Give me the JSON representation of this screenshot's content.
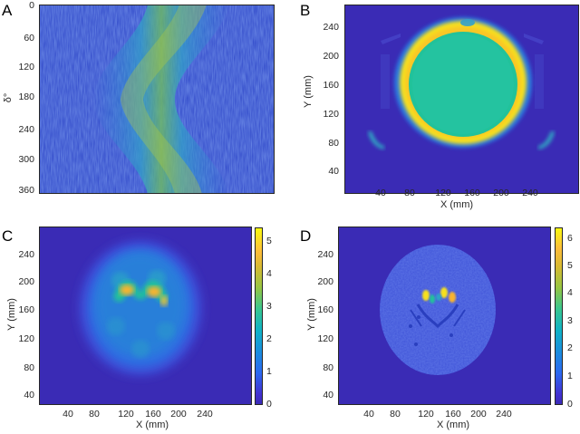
{
  "panels": {
    "a": {
      "letter": "A",
      "ylabel": "δ°",
      "yticks": [
        "0",
        "60",
        "120",
        "180",
        "240",
        "300",
        "360"
      ]
    },
    "b": {
      "letter": "B",
      "xlabel": "X (mm)",
      "ylabel": "Y (mm)",
      "xticks": [
        "40",
        "80",
        "120",
        "160",
        "200",
        "240"
      ],
      "yticks": [
        "240",
        "200",
        "160",
        "120",
        "80",
        "40"
      ]
    },
    "c": {
      "letter": "C",
      "xlabel": "X (mm)",
      "ylabel": "Y (mm)",
      "xticks": [
        "40",
        "80",
        "120",
        "160",
        "200",
        "240"
      ],
      "yticks": [
        "240",
        "200",
        "160",
        "120",
        "80",
        "40"
      ],
      "colorbar_ticks": [
        "5",
        "4",
        "3",
        "2",
        "1",
        "0"
      ]
    },
    "d": {
      "letter": "D",
      "xlabel": "X (mm)",
      "ylabel": "Y (mm)",
      "xticks": [
        "40",
        "80",
        "120",
        "160",
        "200",
        "240"
      ],
      "yticks": [
        "240",
        "200",
        "160",
        "120",
        "80",
        "40"
      ],
      "colorbar_ticks": [
        "6",
        "5",
        "4",
        "3",
        "2",
        "1",
        "0"
      ]
    }
  },
  "colors": {
    "background_dark": "#3a2bb5",
    "mid_blue": "#2a5ee0",
    "cyan": "#22b5b0",
    "teal": "#21c29a",
    "yellow": "#f7e11f",
    "orange": "#f9b42f"
  }
}
